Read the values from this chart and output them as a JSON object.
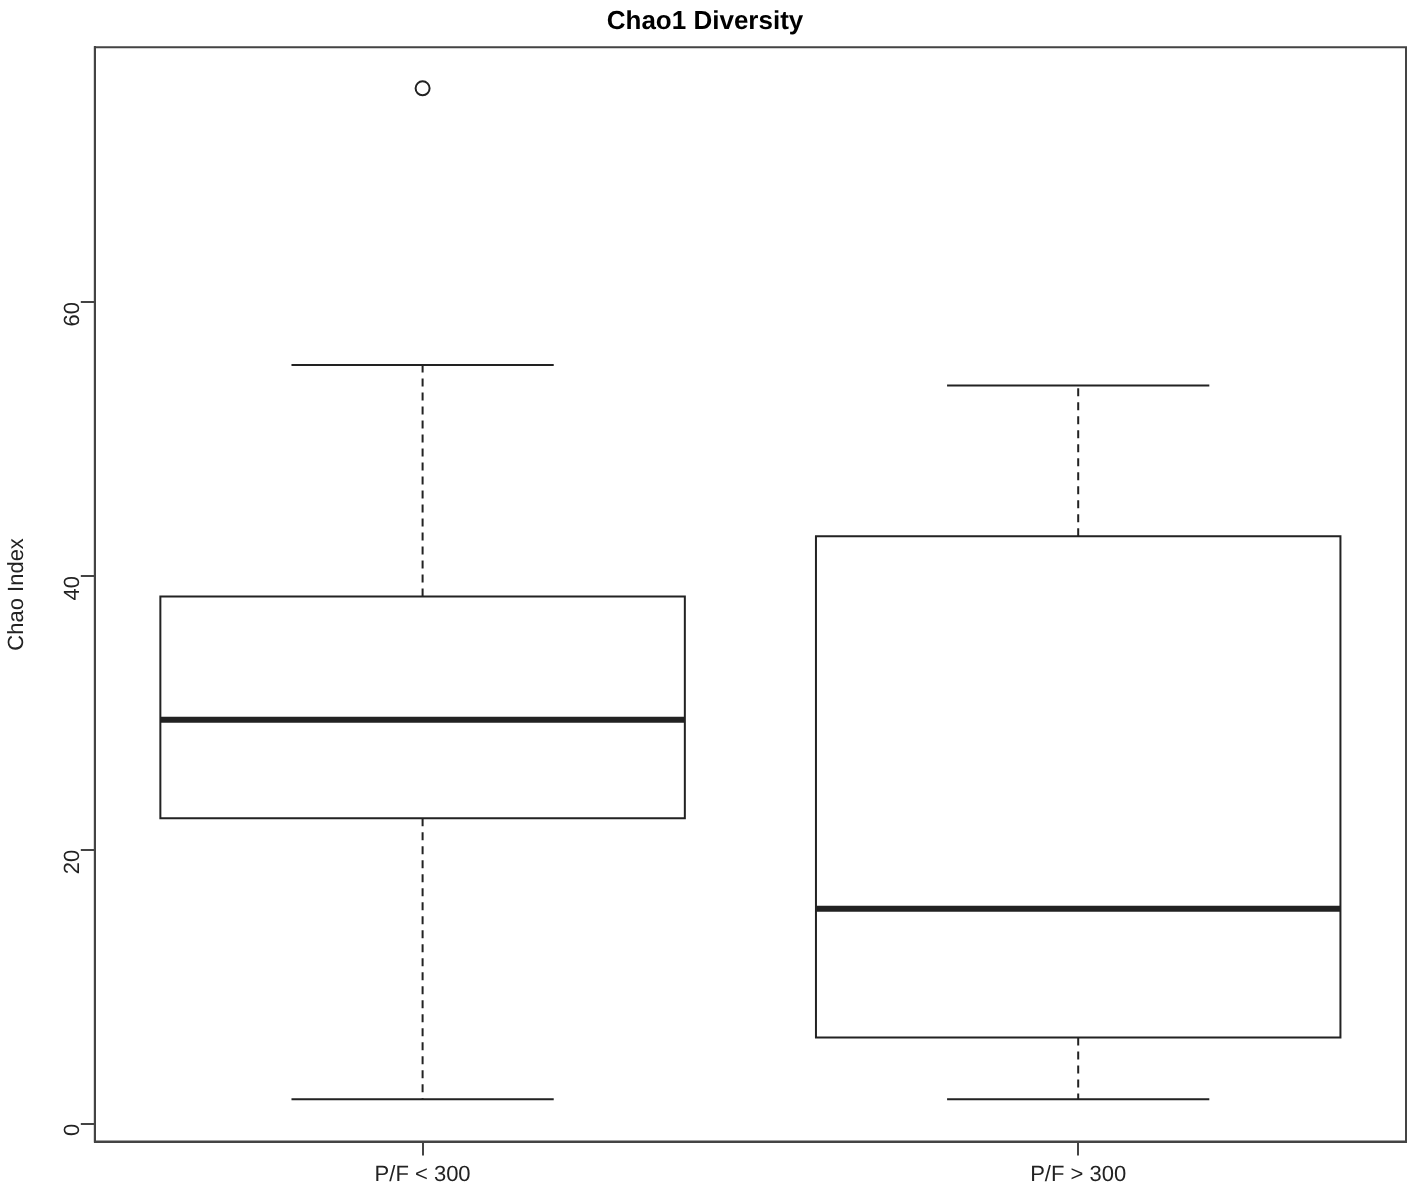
{
  "chart_data": {
    "type": "box",
    "title": "Chao1 Diversity",
    "ylabel": "Chao Index",
    "categories": [
      "P/F < 300",
      "P/F > 300"
    ],
    "boxes": [
      {
        "low": 1.8,
        "q1": 22.3,
        "median": 29.5,
        "q3": 38.5,
        "high": 55.4,
        "outliers": [
          75.6
        ]
      },
      {
        "low": 1.8,
        "q1": 6.3,
        "median": 15.7,
        "q3": 42.9,
        "high": 53.9
      }
    ],
    "color": "#ffffff",
    "ylim": [
      -1.3,
      78.6
    ],
    "yticks": [
      0,
      20,
      40,
      60
    ],
    "grid": false,
    "legend": false
  }
}
